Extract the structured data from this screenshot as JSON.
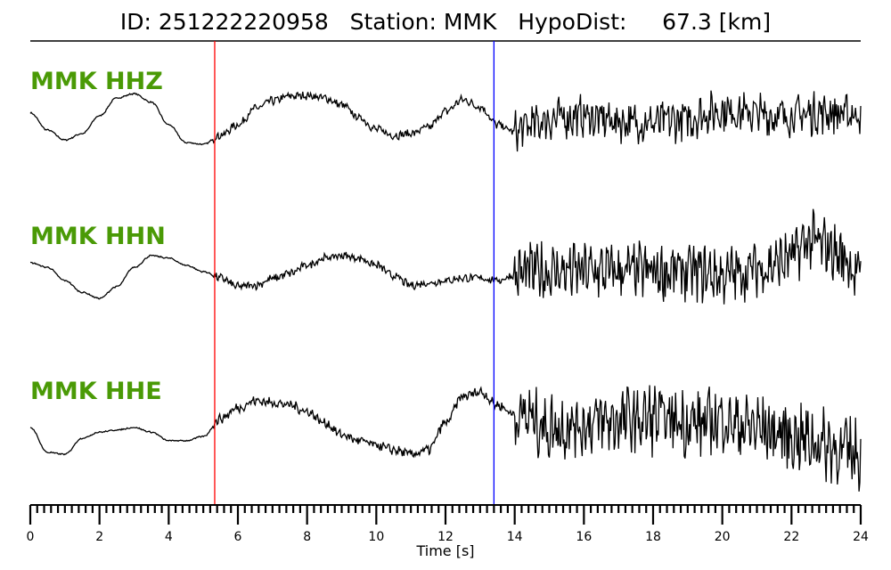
{
  "chart_data": {
    "type": "line",
    "title": "ID: 251222220958   Station: MMK   HypoDist:     67.3 [km]",
    "xlabel": "Time [s]",
    "xlim": [
      0,
      24
    ],
    "xticks": [
      "0",
      "2",
      "4",
      "6",
      "8",
      "10",
      "12",
      "14",
      "16",
      "18",
      "20",
      "22",
      "24"
    ],
    "minor_tick_step": 0.2,
    "grid": false,
    "label_color": "#4a9a06",
    "trace_color": "#000000",
    "markers": [
      {
        "time": 5.33,
        "color": "#ff0000"
      },
      {
        "time": 13.4,
        "color": "#0000ff"
      }
    ],
    "envelope_step_s": 0.5,
    "traces": [
      {
        "name": "MMK HHZ",
        "envelope": [
          0.08,
          -0.4,
          -0.68,
          -0.5,
          0,
          0.5,
          0.62,
          0.38,
          -0.25,
          -0.75,
          -0.8,
          -0.55,
          -0.25,
          0.2,
          0.42,
          0.55,
          0.57,
          0.5,
          0.3,
          -0.05,
          -0.38,
          -0.55,
          -0.5,
          -0.33,
          0.12,
          0.45,
          0.25,
          -0.25,
          -0.45,
          -0.25,
          -0.1,
          -0.05,
          0,
          -0.1,
          -0.15,
          -0.2,
          -0.2,
          -0.15,
          -0.1,
          0.05,
          0.15,
          0.1,
          0.05,
          0,
          0,
          0.05,
          0.1,
          0.05,
          0.05
        ],
        "noise": [
          {
            "from": 0,
            "to": 5.3,
            "amp": 0.02
          },
          {
            "from": 5.3,
            "to": 14,
            "amp": 0.12
          },
          {
            "from": 14,
            "to": 24,
            "amp": 0.6
          }
        ]
      },
      {
        "name": "MMK HHN",
        "envelope": [
          0.25,
          0.12,
          -0.25,
          -0.58,
          -0.75,
          -0.42,
          0.12,
          0.45,
          0.38,
          0.18,
          0,
          -0.18,
          -0.42,
          -0.38,
          -0.2,
          -0.05,
          0.18,
          0.38,
          0.45,
          0.38,
          0.18,
          -0.12,
          -0.38,
          -0.32,
          -0.25,
          -0.18,
          -0.18,
          -0.25,
          -0.1,
          0,
          0,
          0,
          0,
          0,
          0,
          0,
          0,
          0,
          0,
          -0.05,
          -0.1,
          -0.05,
          0.1,
          0.2,
          0.4,
          0.88,
          0.7,
          0.4,
          -0.1
        ],
        "noise": [
          {
            "from": 0,
            "to": 5.3,
            "amp": 0.02
          },
          {
            "from": 5.3,
            "to": 14,
            "amp": 0.12
          },
          {
            "from": 14,
            "to": 24,
            "amp": 0.85
          }
        ]
      },
      {
        "name": "MMK HHE",
        "envelope": [
          0.25,
          -0.45,
          -0.5,
          -0.05,
          0.12,
          0.18,
          0.25,
          0.12,
          -0.12,
          -0.12,
          0,
          0.5,
          0.8,
          1.0,
          0.95,
          0.88,
          0.7,
          0.38,
          0.05,
          -0.12,
          -0.25,
          -0.38,
          -0.5,
          -0.38,
          0.38,
          1.12,
          1.25,
          0.88,
          0.62,
          0.5,
          0.25,
          0.3,
          0.35,
          0.4,
          0.45,
          0.45,
          0.5,
          0.45,
          0.4,
          0.35,
          0.5,
          0.3,
          0.25,
          0.1,
          0,
          -0.1,
          -0.25,
          -0.4,
          -0.5
        ],
        "noise": [
          {
            "from": 0,
            "to": 5.3,
            "amp": 0.02
          },
          {
            "from": 5.3,
            "to": 14,
            "amp": 0.14
          },
          {
            "from": 14,
            "to": 24,
            "amp": 1.0
          }
        ]
      }
    ]
  }
}
